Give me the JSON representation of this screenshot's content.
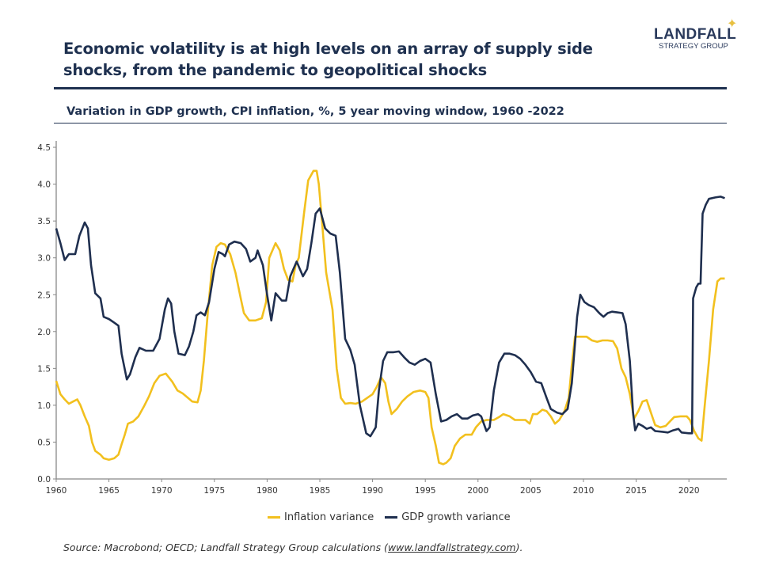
{
  "header": {
    "title": "Economic volatility is at high levels on an array of supply side shocks, from the pandemic to geopolitical shocks",
    "logo_main": "LANDFALL",
    "logo_sub": "STRATEGY GROUP"
  },
  "chart_data": {
    "type": "line",
    "title": "Variation in GDP growth, CPI inflation, %, 5 year moving window, 1960 -2022",
    "xlabel": "",
    "ylabel": "",
    "xlim": [
      1960,
      2023.6
    ],
    "ylim": [
      0,
      4.5
    ],
    "x_ticks": [
      "1960",
      "1965",
      "1970",
      "1975",
      "1980",
      "1985",
      "1990",
      "1995",
      "2000",
      "2005",
      "2010",
      "2015",
      "2020"
    ],
    "y_ticks": [
      "0.0",
      "0.5",
      "1.0",
      "1.5",
      "2.0",
      "2.5",
      "3.0",
      "3.5",
      "4.0",
      "4.5"
    ],
    "grid": false,
    "legend_position": "bottom",
    "series": [
      {
        "name": "Inflation variance",
        "color": "#f2c01e",
        "points": [
          [
            1960.0,
            1.33
          ],
          [
            1960.4,
            1.15
          ],
          [
            1960.8,
            1.08
          ],
          [
            1961.2,
            1.02
          ],
          [
            1961.6,
            1.05
          ],
          [
            1962.0,
            1.08
          ],
          [
            1962.3,
            1.0
          ],
          [
            1962.7,
            0.85
          ],
          [
            1963.1,
            0.72
          ],
          [
            1963.4,
            0.5
          ],
          [
            1963.7,
            0.38
          ],
          [
            1964.2,
            0.33
          ],
          [
            1964.5,
            0.28
          ],
          [
            1965.0,
            0.26
          ],
          [
            1965.5,
            0.28
          ],
          [
            1965.9,
            0.33
          ],
          [
            1966.2,
            0.47
          ],
          [
            1966.5,
            0.6
          ],
          [
            1966.8,
            0.75
          ],
          [
            1967.3,
            0.78
          ],
          [
            1967.8,
            0.85
          ],
          [
            1968.3,
            0.98
          ],
          [
            1968.8,
            1.12
          ],
          [
            1969.3,
            1.3
          ],
          [
            1969.8,
            1.4
          ],
          [
            1970.4,
            1.43
          ],
          [
            1971.0,
            1.32
          ],
          [
            1971.5,
            1.2
          ],
          [
            1972.0,
            1.16
          ],
          [
            1972.5,
            1.1
          ],
          [
            1972.9,
            1.05
          ],
          [
            1973.4,
            1.04
          ],
          [
            1973.7,
            1.2
          ],
          [
            1974.0,
            1.6
          ],
          [
            1974.4,
            2.3
          ],
          [
            1974.8,
            2.9
          ],
          [
            1975.2,
            3.15
          ],
          [
            1975.6,
            3.2
          ],
          [
            1976.0,
            3.18
          ],
          [
            1976.5,
            3.05
          ],
          [
            1977.0,
            2.8
          ],
          [
            1977.5,
            2.45
          ],
          [
            1977.8,
            2.25
          ],
          [
            1978.3,
            2.15
          ],
          [
            1978.9,
            2.15
          ],
          [
            1979.5,
            2.18
          ],
          [
            1979.9,
            2.4
          ],
          [
            1980.2,
            3.0
          ],
          [
            1980.8,
            3.2
          ],
          [
            1981.2,
            3.1
          ],
          [
            1981.6,
            2.85
          ],
          [
            1982.0,
            2.7
          ],
          [
            1982.4,
            2.68
          ],
          [
            1982.7,
            2.9
          ],
          [
            1983.0,
            3.0
          ],
          [
            1983.5,
            3.6
          ],
          [
            1983.9,
            4.05
          ],
          [
            1984.4,
            4.18
          ],
          [
            1984.7,
            4.18
          ],
          [
            1984.9,
            4.0
          ],
          [
            1985.2,
            3.5
          ],
          [
            1985.6,
            2.8
          ],
          [
            1986.2,
            2.3
          ],
          [
            1986.6,
            1.5
          ],
          [
            1987.0,
            1.1
          ],
          [
            1987.4,
            1.02
          ],
          [
            1987.9,
            1.03
          ],
          [
            1988.4,
            1.02
          ],
          [
            1989.0,
            1.05
          ],
          [
            1989.5,
            1.1
          ],
          [
            1990.0,
            1.15
          ],
          [
            1990.4,
            1.25
          ],
          [
            1990.8,
            1.38
          ],
          [
            1991.2,
            1.3
          ],
          [
            1991.5,
            1.05
          ],
          [
            1991.8,
            0.88
          ],
          [
            1992.3,
            0.95
          ],
          [
            1992.8,
            1.05
          ],
          [
            1993.3,
            1.12
          ],
          [
            1993.9,
            1.18
          ],
          [
            1994.5,
            1.2
          ],
          [
            1995.0,
            1.18
          ],
          [
            1995.3,
            1.1
          ],
          [
            1995.6,
            0.7
          ],
          [
            1996.0,
            0.45
          ],
          [
            1996.3,
            0.22
          ],
          [
            1996.7,
            0.2
          ],
          [
            1997.0,
            0.22
          ],
          [
            1997.4,
            0.28
          ],
          [
            1997.8,
            0.45
          ],
          [
            1998.3,
            0.55
          ],
          [
            1998.8,
            0.6
          ],
          [
            1999.4,
            0.6
          ],
          [
            1999.8,
            0.7
          ],
          [
            2000.3,
            0.78
          ],
          [
            2000.8,
            0.8
          ],
          [
            2001.5,
            0.8
          ],
          [
            2002.0,
            0.84
          ],
          [
            2002.4,
            0.88
          ],
          [
            2003.0,
            0.85
          ],
          [
            2003.5,
            0.8
          ],
          [
            2004.0,
            0.8
          ],
          [
            2004.5,
            0.8
          ],
          [
            2004.9,
            0.75
          ],
          [
            2005.2,
            0.88
          ],
          [
            2005.6,
            0.88
          ],
          [
            2006.1,
            0.94
          ],
          [
            2006.5,
            0.92
          ],
          [
            2006.9,
            0.85
          ],
          [
            2007.3,
            0.75
          ],
          [
            2007.7,
            0.8
          ],
          [
            2008.2,
            0.92
          ],
          [
            2008.6,
            1.1
          ],
          [
            2008.9,
            1.55
          ],
          [
            2009.2,
            1.93
          ],
          [
            2009.8,
            1.93
          ],
          [
            2010.3,
            1.93
          ],
          [
            2010.8,
            1.88
          ],
          [
            2011.3,
            1.86
          ],
          [
            2011.8,
            1.88
          ],
          [
            2012.3,
            1.88
          ],
          [
            2012.8,
            1.87
          ],
          [
            2013.2,
            1.77
          ],
          [
            2013.6,
            1.5
          ],
          [
            2014.0,
            1.38
          ],
          [
            2014.4,
            1.15
          ],
          [
            2014.8,
            0.82
          ],
          [
            2015.2,
            0.92
          ],
          [
            2015.6,
            1.05
          ],
          [
            2016.0,
            1.07
          ],
          [
            2016.4,
            0.9
          ],
          [
            2016.8,
            0.73
          ],
          [
            2017.3,
            0.7
          ],
          [
            2017.8,
            0.72
          ],
          [
            2018.2,
            0.78
          ],
          [
            2018.6,
            0.84
          ],
          [
            2019.2,
            0.85
          ],
          [
            2019.8,
            0.85
          ],
          [
            2020.1,
            0.8
          ],
          [
            2020.5,
            0.65
          ],
          [
            2020.9,
            0.55
          ],
          [
            2021.2,
            0.52
          ],
          [
            2021.5,
            1.0
          ],
          [
            2021.9,
            1.6
          ],
          [
            2022.3,
            2.3
          ],
          [
            2022.7,
            2.68
          ],
          [
            2023.0,
            2.72
          ],
          [
            2023.4,
            2.72
          ]
        ]
      },
      {
        "name": "GDP growth variance",
        "color": "#1f2f4f",
        "points": [
          [
            1960.0,
            3.4
          ],
          [
            1960.4,
            3.2
          ],
          [
            1960.8,
            2.97
          ],
          [
            1961.2,
            3.05
          ],
          [
            1961.8,
            3.05
          ],
          [
            1962.2,
            3.3
          ],
          [
            1962.7,
            3.48
          ],
          [
            1963.0,
            3.4
          ],
          [
            1963.3,
            2.9
          ],
          [
            1963.7,
            2.52
          ],
          [
            1964.2,
            2.45
          ],
          [
            1964.5,
            2.2
          ],
          [
            1965.0,
            2.17
          ],
          [
            1965.5,
            2.12
          ],
          [
            1965.9,
            2.08
          ],
          [
            1966.2,
            1.7
          ],
          [
            1966.7,
            1.35
          ],
          [
            1967.0,
            1.42
          ],
          [
            1967.5,
            1.65
          ],
          [
            1967.9,
            1.78
          ],
          [
            1968.5,
            1.74
          ],
          [
            1969.2,
            1.74
          ],
          [
            1969.8,
            1.9
          ],
          [
            1970.3,
            2.3
          ],
          [
            1970.6,
            2.45
          ],
          [
            1970.9,
            2.38
          ],
          [
            1971.2,
            2.0
          ],
          [
            1971.6,
            1.7
          ],
          [
            1972.2,
            1.68
          ],
          [
            1972.6,
            1.8
          ],
          [
            1973.0,
            2.0
          ],
          [
            1973.3,
            2.22
          ],
          [
            1973.7,
            2.26
          ],
          [
            1974.1,
            2.22
          ],
          [
            1974.5,
            2.4
          ],
          [
            1975.0,
            2.85
          ],
          [
            1975.4,
            3.08
          ],
          [
            1975.8,
            3.05
          ],
          [
            1976.0,
            3.02
          ],
          [
            1976.4,
            3.18
          ],
          [
            1976.9,
            3.22
          ],
          [
            1977.5,
            3.2
          ],
          [
            1978.0,
            3.12
          ],
          [
            1978.4,
            2.95
          ],
          [
            1978.9,
            3.0
          ],
          [
            1979.1,
            3.1
          ],
          [
            1979.6,
            2.9
          ],
          [
            1980.0,
            2.5
          ],
          [
            1980.4,
            2.15
          ],
          [
            1980.8,
            2.52
          ],
          [
            1981.4,
            2.42
          ],
          [
            1981.8,
            2.42
          ],
          [
            1982.2,
            2.75
          ],
          [
            1982.8,
            2.95
          ],
          [
            1983.4,
            2.75
          ],
          [
            1983.8,
            2.85
          ],
          [
            1984.2,
            3.2
          ],
          [
            1984.6,
            3.6
          ],
          [
            1985.0,
            3.67
          ],
          [
            1985.5,
            3.4
          ],
          [
            1986.0,
            3.33
          ],
          [
            1986.5,
            3.3
          ],
          [
            1986.9,
            2.8
          ],
          [
            1987.4,
            1.9
          ],
          [
            1987.9,
            1.75
          ],
          [
            1988.3,
            1.55
          ],
          [
            1988.8,
            1.0
          ],
          [
            1989.4,
            0.62
          ],
          [
            1989.8,
            0.58
          ],
          [
            1990.3,
            0.7
          ],
          [
            1990.6,
            1.2
          ],
          [
            1991.0,
            1.6
          ],
          [
            1991.4,
            1.72
          ],
          [
            1992.0,
            1.72
          ],
          [
            1992.5,
            1.73
          ],
          [
            1993.0,
            1.65
          ],
          [
            1993.5,
            1.58
          ],
          [
            1994.0,
            1.55
          ],
          [
            1994.5,
            1.6
          ],
          [
            1995.0,
            1.63
          ],
          [
            1995.5,
            1.58
          ],
          [
            1996.0,
            1.15
          ],
          [
            1996.5,
            0.78
          ],
          [
            1997.0,
            0.8
          ],
          [
            1997.5,
            0.85
          ],
          [
            1998.0,
            0.88
          ],
          [
            1998.5,
            0.82
          ],
          [
            1999.0,
            0.82
          ],
          [
            1999.5,
            0.86
          ],
          [
            2000.0,
            0.88
          ],
          [
            2000.3,
            0.85
          ],
          [
            2000.8,
            0.65
          ],
          [
            2001.1,
            0.7
          ],
          [
            2001.5,
            1.2
          ],
          [
            2002.0,
            1.58
          ],
          [
            2002.5,
            1.7
          ],
          [
            2003.0,
            1.7
          ],
          [
            2003.5,
            1.68
          ],
          [
            2004.0,
            1.63
          ],
          [
            2004.5,
            1.55
          ],
          [
            2005.0,
            1.45
          ],
          [
            2005.5,
            1.32
          ],
          [
            2006.0,
            1.3
          ],
          [
            2006.5,
            1.1
          ],
          [
            2006.9,
            0.95
          ],
          [
            2007.5,
            0.9
          ],
          [
            2008.0,
            0.88
          ],
          [
            2008.5,
            0.95
          ],
          [
            2008.9,
            1.3
          ],
          [
            2009.4,
            2.2
          ],
          [
            2009.7,
            2.5
          ],
          [
            2010.1,
            2.4
          ],
          [
            2010.5,
            2.36
          ],
          [
            2011.0,
            2.33
          ],
          [
            2011.5,
            2.25
          ],
          [
            2011.9,
            2.2
          ],
          [
            2012.3,
            2.25
          ],
          [
            2012.7,
            2.27
          ],
          [
            2013.2,
            2.26
          ],
          [
            2013.7,
            2.25
          ],
          [
            2014.0,
            2.1
          ],
          [
            2014.4,
            1.6
          ],
          [
            2014.7,
            0.9
          ],
          [
            2014.9,
            0.66
          ],
          [
            2015.2,
            0.75
          ],
          [
            2015.6,
            0.72
          ],
          [
            2016.0,
            0.68
          ],
          [
            2016.4,
            0.7
          ],
          [
            2016.8,
            0.65
          ],
          [
            2017.5,
            0.64
          ],
          [
            2018.0,
            0.63
          ],
          [
            2018.5,
            0.66
          ],
          [
            2019.0,
            0.68
          ],
          [
            2019.3,
            0.63
          ],
          [
            2020.0,
            0.62
          ],
          [
            2020.3,
            0.62
          ],
          [
            2020.4,
            2.45
          ],
          [
            2020.7,
            2.6
          ],
          [
            2020.9,
            2.65
          ],
          [
            2021.1,
            2.65
          ],
          [
            2021.3,
            3.6
          ],
          [
            2021.6,
            3.72
          ],
          [
            2021.9,
            3.8
          ],
          [
            2022.5,
            3.82
          ],
          [
            2023.0,
            3.83
          ],
          [
            2023.4,
            3.81
          ]
        ]
      }
    ]
  },
  "footer": {
    "source_prefix": "Source: Macrobond; OECD; Landfall Strategy Group calculations (",
    "source_link": "www.landfallstrategy.com",
    "source_suffix": ")."
  }
}
